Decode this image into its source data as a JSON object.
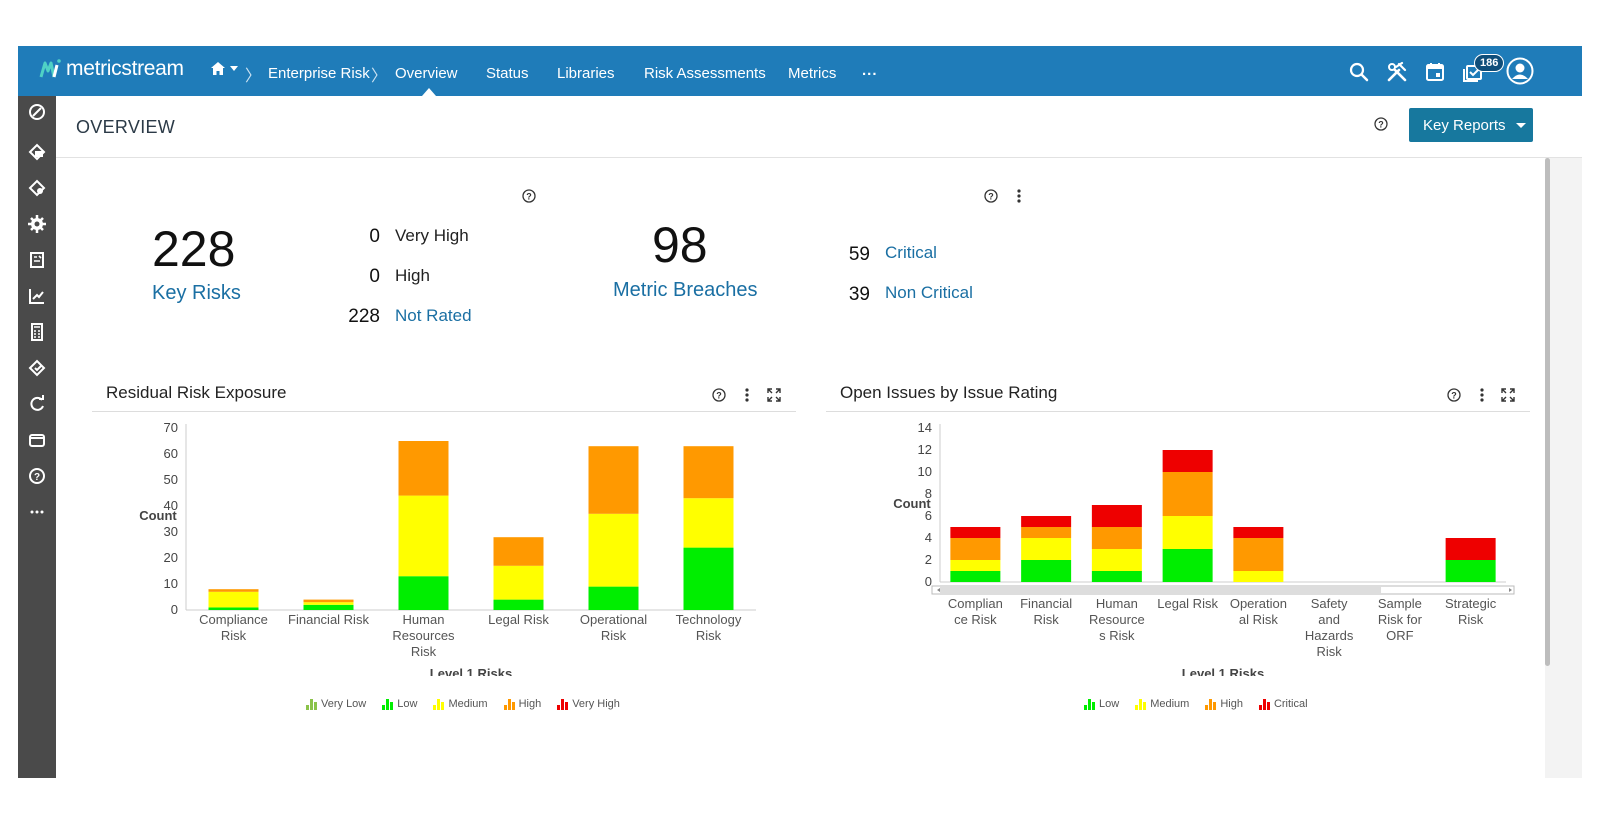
{
  "app": {
    "brand": "metricstream",
    "breadcrumb": [
      "Enterprise Risk"
    ],
    "nav": [
      "Overview",
      "Status",
      "Libraries",
      "Risk Assessments",
      "Metrics",
      "..."
    ],
    "active_nav": "Overview",
    "notification_count": "186",
    "topbar_icons": [
      "search-icon",
      "tools-icon",
      "calendar-icon",
      "notifications-icon",
      "user-icon"
    ],
    "sidebar_icons": [
      "compass-icon",
      "risk-icon",
      "controls-icon",
      "settings-icon",
      "report-icon",
      "trend-icon",
      "calculator-icon",
      "policy-icon",
      "refresh-icon",
      "wallet-icon",
      "help-icon",
      "more-icon"
    ],
    "colors": {
      "brand": "#1f7cb9",
      "sidebar": "#4a4a4a",
      "link": "#1a6fa3",
      "button": "#17789e"
    }
  },
  "header": {
    "title": "OVERVIEW",
    "key_reports_label": "Key Reports"
  },
  "summary": {
    "key_risks": {
      "value": "228",
      "label": "Key Risks",
      "rows": [
        {
          "value": "0",
          "label": "Very High"
        },
        {
          "value": "0",
          "label": "High"
        },
        {
          "value": "228",
          "label": "Not Rated"
        }
      ]
    },
    "metric_breaches": {
      "value": "98",
      "label": "Metric Breaches",
      "rows": [
        {
          "value": "59",
          "label": "Critical"
        },
        {
          "value": "39",
          "label": "Non Critical"
        }
      ]
    }
  },
  "cards": {
    "residual": {
      "title": "Residual Risk Exposure"
    },
    "issues": {
      "title": "Open Issues by Issue Rating"
    }
  },
  "chart_data": [
    {
      "type": "bar",
      "stacked": true,
      "title": "Residual Risk Exposure",
      "xlabel": "Level 1 Risks",
      "ylabel": "Count",
      "ylim": [
        0,
        70
      ],
      "yticks": [
        0,
        10,
        20,
        30,
        40,
        50,
        60,
        70
      ],
      "categories": [
        [
          "Compliance",
          "Risk"
        ],
        [
          "Financial Risk"
        ],
        [
          "Human",
          "Resources",
          "Risk"
        ],
        [
          "Legal Risk"
        ],
        [
          "Operational",
          "Risk"
        ],
        [
          "Technology",
          "Risk"
        ]
      ],
      "series": [
        {
          "name": "Very Low",
          "color": "#8bc34a",
          "values": [
            0,
            0,
            0,
            0,
            0,
            0
          ]
        },
        {
          "name": "Low",
          "color": "#00ee00",
          "values": [
            1,
            2,
            13,
            4,
            9,
            24
          ]
        },
        {
          "name": "Medium",
          "color": "#ffff00",
          "values": [
            6,
            1,
            31,
            13,
            28,
            19
          ]
        },
        {
          "name": "High",
          "color": "#ff9900",
          "values": [
            1,
            1,
            21,
            11,
            26,
            20
          ]
        },
        {
          "name": "Very High",
          "color": "#ee0000",
          "values": [
            0,
            0,
            0,
            0,
            0,
            0
          ]
        }
      ],
      "legend": "bottom"
    },
    {
      "type": "bar",
      "stacked": true,
      "title": "Open Issues by Issue Rating",
      "xlabel": "Level 1 Risks",
      "ylabel": "Count",
      "ylim": [
        0,
        14
      ],
      "yticks": [
        0,
        2,
        4,
        6,
        8,
        10,
        12,
        14
      ],
      "categories": [
        [
          "Complian",
          "ce Risk"
        ],
        [
          "Financial",
          "Risk"
        ],
        [
          "Human",
          "Resource",
          "s Risk"
        ],
        [
          "Legal Risk"
        ],
        [
          "Operation",
          "al Risk"
        ],
        [
          "Safety",
          "and",
          "Hazards",
          "Risk"
        ],
        [
          "Sample",
          "Risk for",
          "ORF"
        ],
        [
          "Strategic",
          "Risk"
        ]
      ],
      "series": [
        {
          "name": "Low",
          "color": "#00ee00",
          "values": [
            1,
            2,
            1,
            3,
            0,
            0,
            0,
            2
          ]
        },
        {
          "name": "Medium",
          "color": "#ffff00",
          "values": [
            1,
            2,
            2,
            3,
            1,
            0,
            0,
            0
          ]
        },
        {
          "name": "High",
          "color": "#ff9900",
          "values": [
            2,
            1,
            2,
            4,
            3,
            0,
            0,
            0
          ]
        },
        {
          "name": "Critical",
          "color": "#ee0000",
          "values": [
            1,
            1,
            2,
            2,
            1,
            0,
            0,
            2
          ]
        }
      ],
      "legend": "bottom"
    }
  ]
}
